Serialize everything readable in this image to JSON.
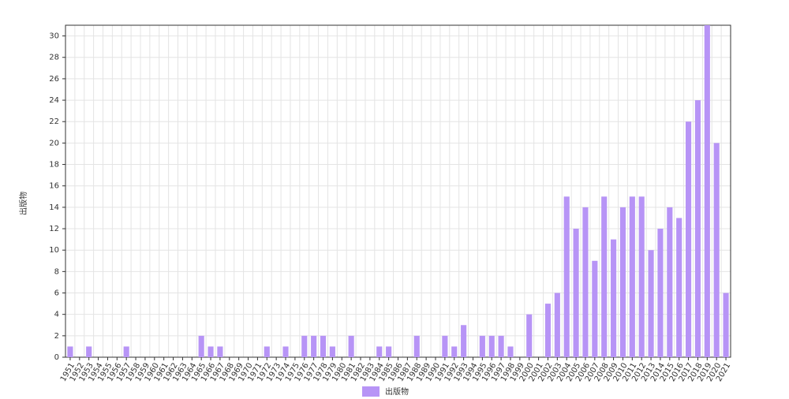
{
  "chart_data": {
    "type": "bar",
    "y_label": "出版物",
    "categories": [
      "1951",
      "1952",
      "1953",
      "1954",
      "1955",
      "1956",
      "1957",
      "1958",
      "1959",
      "1960",
      "1961",
      "1962",
      "1963",
      "1964",
      "1965",
      "1966",
      "1967",
      "1968",
      "1969",
      "1970",
      "1971",
      "1972",
      "1973",
      "1974",
      "1975",
      "1976",
      "1977",
      "1978",
      "1979",
      "1980",
      "1981",
      "1982",
      "1983",
      "1984",
      "1985",
      "1986",
      "1987",
      "1988",
      "1989",
      "1990",
      "1991",
      "1992",
      "1993",
      "1994",
      "1995",
      "1996",
      "1997",
      "1998",
      "1999",
      "2000",
      "2001",
      "2002",
      "2003",
      "2004",
      "2005",
      "2006",
      "2007",
      "2008",
      "2009",
      "2010",
      "2011",
      "2012",
      "2013",
      "2014",
      "2015",
      "2016",
      "2017",
      "2018",
      "2019",
      "2020",
      "2021"
    ],
    "series": [
      {
        "name": "出版物",
        "color": "#b794f6",
        "values": [
          1,
          0,
          1,
          0,
          0,
          0,
          1,
          0,
          0,
          0,
          0,
          0,
          0,
          0,
          2,
          1,
          1,
          0,
          0,
          0,
          0,
          1,
          0,
          1,
          0,
          2,
          2,
          2,
          1,
          0,
          2,
          0,
          0,
          1,
          1,
          0,
          0,
          2,
          0,
          0,
          2,
          1,
          3,
          0,
          2,
          2,
          2,
          1,
          0,
          4,
          0,
          5,
          6,
          15,
          12,
          14,
          9,
          15,
          11,
          14,
          15,
          15,
          10,
          12,
          14,
          13,
          22,
          24,
          31,
          20,
          6
        ]
      }
    ],
    "ylim": [
      0,
      31
    ],
    "yticks": [
      0,
      2,
      4,
      6,
      8,
      10,
      12,
      14,
      16,
      18,
      20,
      22,
      24,
      26,
      28,
      30
    ],
    "grid": true,
    "legend": "bottom"
  }
}
